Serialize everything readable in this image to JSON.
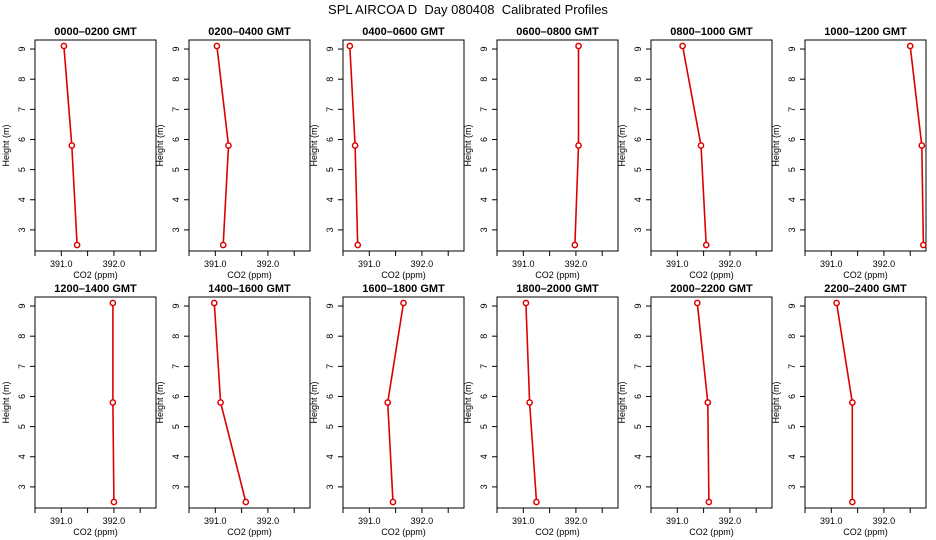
{
  "title": "SPL AIRCOA D  Day 080408  Calibrated Profiles",
  "colors": {
    "series": "#dd0000",
    "axis": "#000000"
  },
  "chart_data": [
    {
      "type": "line",
      "title": "0000–0200 GMT",
      "xlabel": "CO2 (ppm)",
      "ylabel": "Height (m)",
      "xlim": [
        390.5,
        392.8
      ],
      "ylim": [
        2.3,
        9.3
      ],
      "xticks": [
        "391.0",
        "392.0"
      ],
      "yticks": [
        "3",
        "4",
        "5",
        "6",
        "7",
        "8",
        "9"
      ],
      "x": [
        391.05,
        391.2,
        391.3
      ],
      "y": [
        9.1,
        5.8,
        2.5
      ]
    },
    {
      "type": "line",
      "title": "0200–0400 GMT",
      "xlabel": "CO2 (ppm)",
      "ylabel": "Height (m)",
      "xlim": [
        390.5,
        392.8
      ],
      "ylim": [
        2.3,
        9.3
      ],
      "xticks": [
        "391.0",
        "392.0"
      ],
      "yticks": [
        "3",
        "4",
        "5",
        "6",
        "7",
        "8",
        "9"
      ],
      "x": [
        391.03,
        391.25,
        391.15
      ],
      "y": [
        9.1,
        5.8,
        2.5
      ]
    },
    {
      "type": "line",
      "title": "0400–0600 GMT",
      "xlabel": "CO2 (ppm)",
      "ylabel": "Height (m)",
      "xlim": [
        390.5,
        392.8
      ],
      "ylim": [
        2.3,
        9.3
      ],
      "xticks": [
        "391.0",
        "392.0"
      ],
      "yticks": [
        "3",
        "4",
        "5",
        "6",
        "7",
        "8",
        "9"
      ],
      "x": [
        390.63,
        390.73,
        390.78
      ],
      "y": [
        9.1,
        5.8,
        2.5
      ]
    },
    {
      "type": "line",
      "title": "0600–0800 GMT",
      "xlabel": "CO2 (ppm)",
      "ylabel": "Height (m)",
      "xlim": [
        390.5,
        392.8
      ],
      "ylim": [
        2.3,
        9.3
      ],
      "xticks": [
        "391.0",
        "392.0"
      ],
      "yticks": [
        "3",
        "4",
        "5",
        "6",
        "7",
        "8",
        "9"
      ],
      "x": [
        392.05,
        392.05,
        391.98
      ],
      "y": [
        9.1,
        5.8,
        2.5
      ]
    },
    {
      "type": "line",
      "title": "0800–1000 GMT",
      "xlabel": "CO2 (ppm)",
      "ylabel": "Height (m)",
      "xlim": [
        390.5,
        392.8
      ],
      "ylim": [
        2.3,
        9.3
      ],
      "xticks": [
        "391.0",
        "392.0"
      ],
      "yticks": [
        "3",
        "4",
        "5",
        "6",
        "7",
        "8",
        "9"
      ],
      "x": [
        391.1,
        391.45,
        391.55
      ],
      "y": [
        9.1,
        5.8,
        2.5
      ]
    },
    {
      "type": "line",
      "title": "1000–1200 GMT",
      "xlabel": "CO2 (ppm)",
      "ylabel": "Height (m)",
      "xlim": [
        390.5,
        392.8
      ],
      "ylim": [
        2.3,
        9.3
      ],
      "xticks": [
        "391.0",
        "392.0"
      ],
      "yticks": [
        "3",
        "4",
        "5",
        "6",
        "7",
        "8",
        "9"
      ],
      "x": [
        392.5,
        392.72,
        392.75
      ],
      "y": [
        9.1,
        5.8,
        2.5
      ]
    },
    {
      "type": "line",
      "title": "1200–1400 GMT",
      "xlabel": "CO2 (ppm)",
      "ylabel": "Height (m)",
      "xlim": [
        390.5,
        392.8
      ],
      "ylim": [
        2.3,
        9.3
      ],
      "xticks": [
        "391.0",
        "392.0"
      ],
      "yticks": [
        "3",
        "4",
        "5",
        "6",
        "7",
        "8",
        "9"
      ],
      "x": [
        391.98,
        391.98,
        392.0
      ],
      "y": [
        9.1,
        5.8,
        2.5
      ]
    },
    {
      "type": "line",
      "title": "1400–1600 GMT",
      "xlabel": "CO2 (ppm)",
      "ylabel": "Height (m)",
      "xlim": [
        390.5,
        392.8
      ],
      "ylim": [
        2.3,
        9.3
      ],
      "xticks": [
        "391.0",
        "392.0"
      ],
      "yticks": [
        "3",
        "4",
        "5",
        "6",
        "7",
        "8",
        "9"
      ],
      "x": [
        390.98,
        391.1,
        391.58
      ],
      "y": [
        9.1,
        5.8,
        2.5
      ]
    },
    {
      "type": "line",
      "title": "1600–1800 GMT",
      "xlabel": "CO2 (ppm)",
      "ylabel": "Height (m)",
      "xlim": [
        390.5,
        392.8
      ],
      "ylim": [
        2.3,
        9.3
      ],
      "xticks": [
        "391.0",
        "392.0"
      ],
      "yticks": [
        "3",
        "4",
        "5",
        "6",
        "7",
        "8",
        "9"
      ],
      "x": [
        391.65,
        391.35,
        391.45
      ],
      "y": [
        9.1,
        5.8,
        2.5
      ]
    },
    {
      "type": "line",
      "title": "1800–2000 GMT",
      "xlabel": "CO2 (ppm)",
      "ylabel": "Height (m)",
      "xlim": [
        390.5,
        392.8
      ],
      "ylim": [
        2.3,
        9.3
      ],
      "xticks": [
        "391.0",
        "392.0"
      ],
      "yticks": [
        "3",
        "4",
        "5",
        "6",
        "7",
        "8",
        "9"
      ],
      "x": [
        391.05,
        391.12,
        391.25
      ],
      "y": [
        9.1,
        5.8,
        2.5
      ]
    },
    {
      "type": "line",
      "title": "2000–2200 GMT",
      "xlabel": "CO2 (ppm)",
      "ylabel": "Height (m)",
      "xlim": [
        390.5,
        392.8
      ],
      "ylim": [
        2.3,
        9.3
      ],
      "xticks": [
        "391.0",
        "392.0"
      ],
      "yticks": [
        "3",
        "4",
        "5",
        "6",
        "7",
        "8",
        "9"
      ],
      "x": [
        391.38,
        391.58,
        391.6
      ],
      "y": [
        9.1,
        5.8,
        2.5
      ]
    },
    {
      "type": "line",
      "title": "2200–2400 GMT",
      "xlabel": "CO2 (ppm)",
      "ylabel": "Height (m)",
      "xlim": [
        390.5,
        392.8
      ],
      "ylim": [
        2.3,
        9.3
      ],
      "xticks": [
        "391.0",
        "392.0"
      ],
      "yticks": [
        "3",
        "4",
        "5",
        "6",
        "7",
        "8",
        "9"
      ],
      "x": [
        391.1,
        391.4,
        391.4
      ],
      "y": [
        9.1,
        5.8,
        2.5
      ]
    }
  ]
}
